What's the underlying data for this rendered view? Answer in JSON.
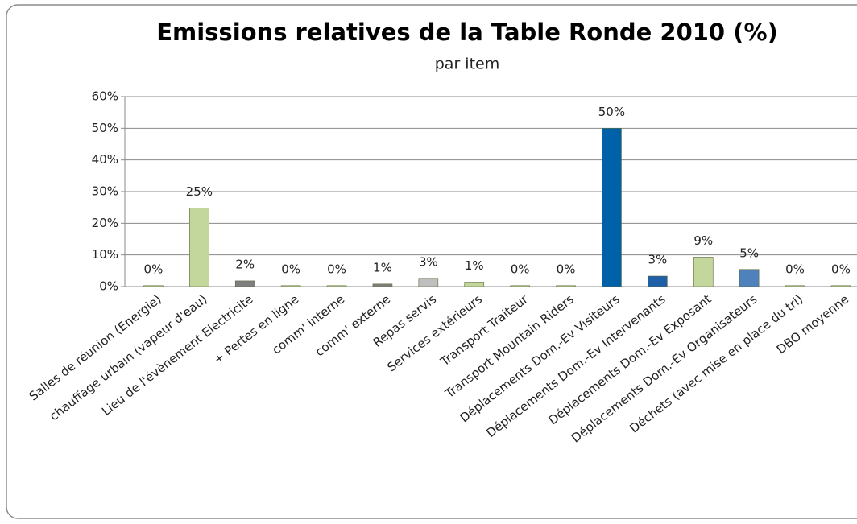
{
  "chart_data": {
    "type": "bar",
    "title": "Emissions relatives de la Table Ronde 2010 (%)",
    "subtitle": "par item",
    "categories": [
      "Salles de réunion (Energie)",
      "chauffage urbain (vapeur d'eau)",
      "Lieu de l'évènement Electricité",
      "+ Pertes en ligne",
      "comm' interne",
      "comm' externe",
      "Repas servis",
      "Services extérieurs",
      "Transport Traiteur",
      "Transport Mountain Riders",
      "Déplacements Dom.-Ev Visiteurs",
      "Déplacements Dom.-Ev Intervenants",
      "Déplacements Dom.-Ev Exposant",
      "Déplacements Dom.-Ev Organisateurs",
      "Déchets (avec mise en place du tri)",
      "DBO moyenne"
    ],
    "values": [
      0.3,
      24.8,
      1.8,
      0.3,
      0.3,
      0.8,
      2.6,
      1.4,
      0.3,
      0.3,
      50,
      3.3,
      9.3,
      5.4,
      0.3,
      0.3
    ],
    "value_labels": [
      "0%",
      "25%",
      "2%",
      "0%",
      "0%",
      "1%",
      "3%",
      "1%",
      "0%",
      "0%",
      "50%",
      "3%",
      "9%",
      "5%",
      "0%",
      "0%"
    ],
    "colors": [
      "#c3d69b",
      "#c3d69b",
      "#7f7f7f",
      "#c3d69b",
      "#c3d69b",
      "#7f7f7f",
      "#bfbfbf",
      "#c3d69b",
      "#c3d69b",
      "#c3d69b",
      "#0061a8",
      "#1f5fa8",
      "#c3d69b",
      "#4f81bd",
      "#c3d69b",
      "#c3d69b"
    ],
    "ylim": [
      0,
      60
    ],
    "yticks": [
      {
        "value": 0,
        "label": "0%"
      },
      {
        "value": 10,
        "label": "10%"
      },
      {
        "value": 20,
        "label": "20%"
      },
      {
        "value": 30,
        "label": "30%"
      },
      {
        "value": 40,
        "label": "40%"
      },
      {
        "value": 50,
        "label": "50%"
      },
      {
        "value": 60,
        "label": "60%"
      }
    ],
    "grid": true
  }
}
